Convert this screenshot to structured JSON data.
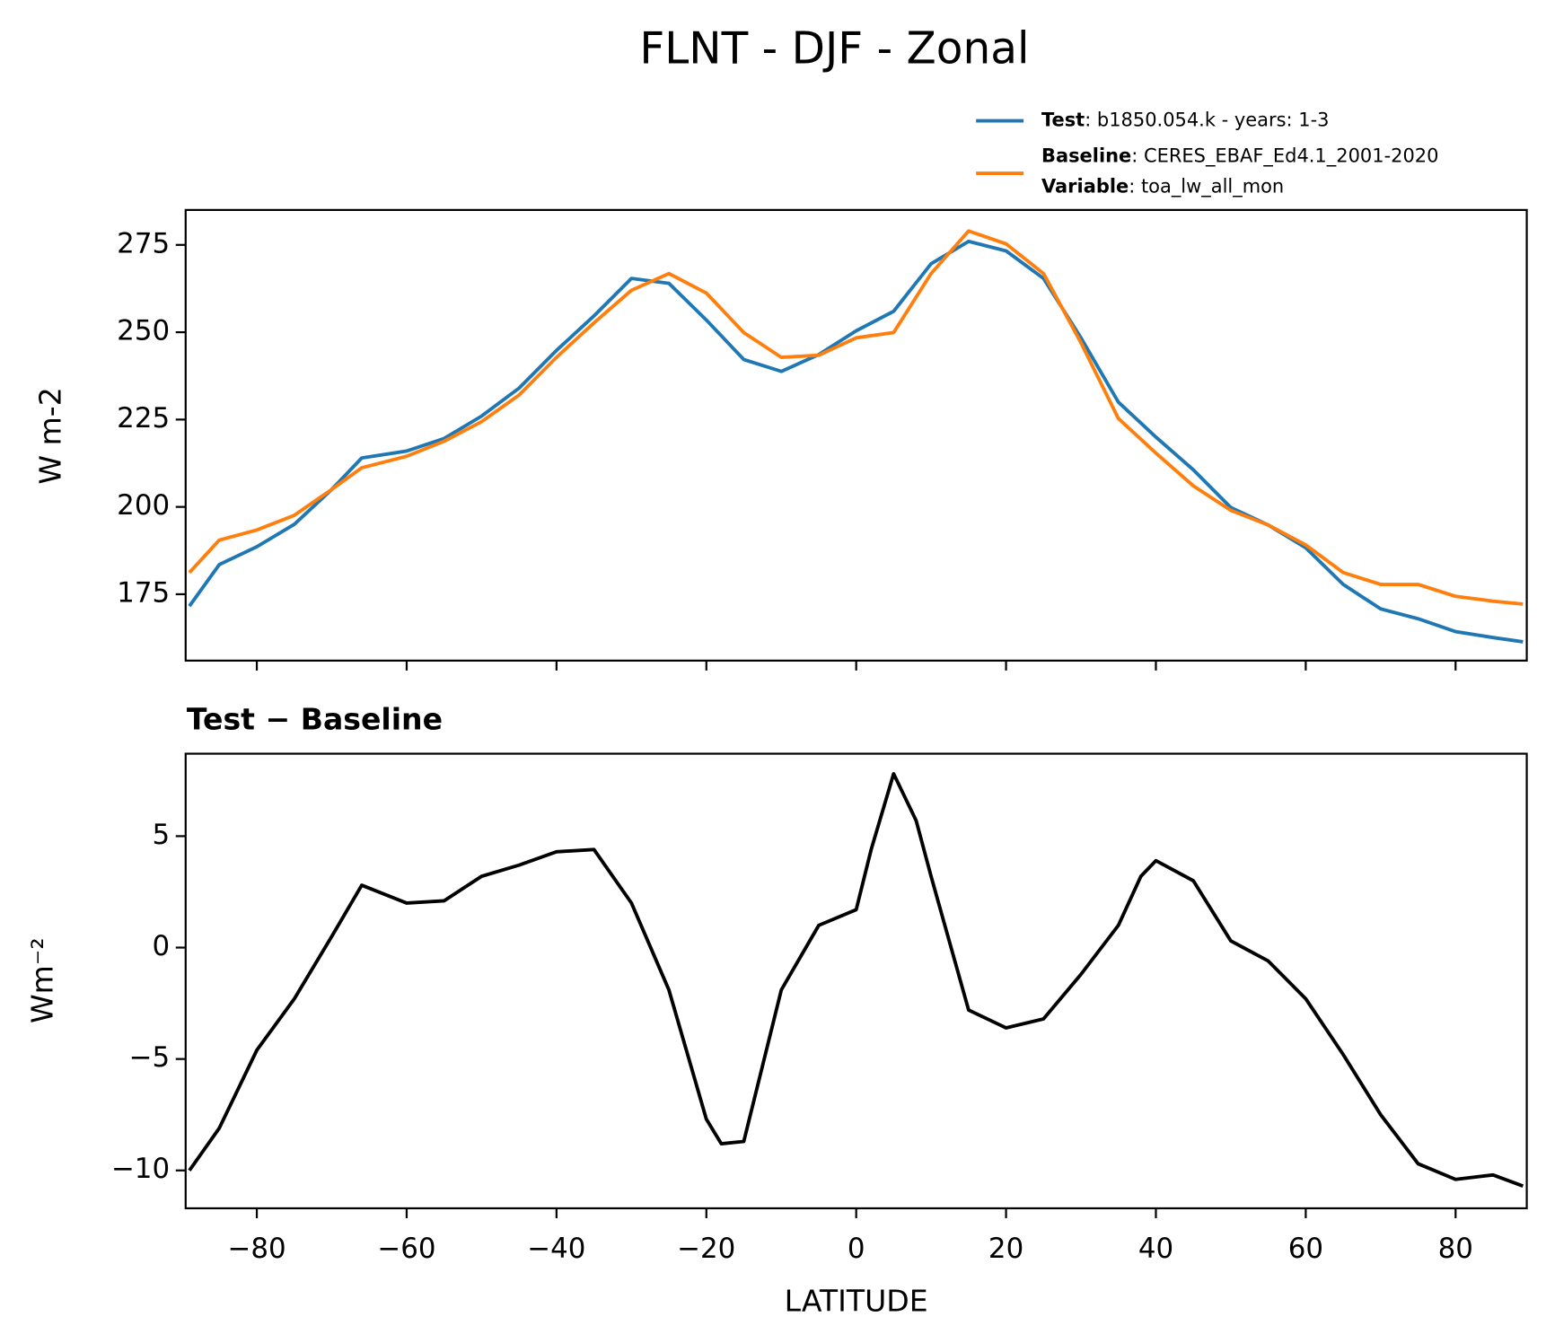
{
  "chart_data": [
    {
      "type": "line",
      "title": "FLNT - DJF - Zonal",
      "ylabel": "W m-2",
      "x": [
        -89,
        -85,
        -80,
        -75,
        -70,
        -66,
        -60,
        -55,
        -50,
        -45,
        -40,
        -35,
        -30,
        -25,
        -20,
        -15,
        -10,
        -5,
        0,
        5,
        10,
        15,
        20,
        25,
        30,
        35,
        40,
        45,
        50,
        55,
        60,
        65,
        70,
        75,
        80,
        85,
        89
      ],
      "series": [
        {
          "name": "Test",
          "label": ": b1850.054.k - years: 1-3",
          "color": "#1f77b4",
          "values": [
            171.6,
            183.5,
            188.6,
            195,
            205,
            214,
            216,
            219.6,
            226,
            234,
            244.8,
            254.7,
            265.4,
            264,
            253.5,
            242.2,
            238.8,
            243.6,
            250.4,
            256,
            269.6,
            276,
            273.3,
            265.4,
            248.4,
            230,
            220,
            210.6,
            199.8,
            194.8,
            188.3,
            177.8,
            170.8,
            168,
            164.3,
            162.6,
            161.4
          ]
        },
        {
          "name": "Baseline",
          "label": ": CERES_EBAF_Ed4.1_2001-2020",
          "color": "#ff7f0e",
          "values": [
            181.2,
            190.5,
            193.4,
            197.6,
            205,
            211.2,
            214.5,
            218.8,
            224.4,
            232,
            242.8,
            252.7,
            262,
            266.8,
            261.2,
            249.9,
            242.8,
            243.4,
            248.4,
            249.9,
            266.8,
            279,
            275.3,
            266.8,
            247,
            225.3,
            215.4,
            206,
            199,
            194.8,
            189.1,
            181.2,
            177.8,
            177.8,
            174.4,
            173,
            172.2
          ]
        }
      ],
      "legend_extra": {
        "name": "Variable",
        "label": ": toa_lw_all_mon"
      },
      "xlim": [
        -89.5,
        89.5
      ],
      "xticks": [
        -80,
        -60,
        -40,
        -20,
        0,
        20,
        40,
        60,
        80
      ],
      "xticklabels": false,
      "ylim": [
        156,
        285
      ],
      "yticks": [
        175,
        200,
        225,
        250,
        275
      ]
    },
    {
      "type": "line",
      "title": "Test − Baseline",
      "xlabel": "LATITUDE",
      "ylabel": "Wm⁻²",
      "x": [
        -89,
        -85,
        -80,
        -75,
        -70,
        -66,
        -60,
        -55,
        -50,
        -45,
        -40,
        -35,
        -30,
        -25,
        -20,
        -18,
        -15,
        -10,
        -5,
        0,
        2,
        5,
        8,
        10,
        15,
        20,
        25,
        30,
        35,
        38,
        40,
        45,
        50,
        55,
        60,
        65,
        70,
        75,
        80,
        85,
        89
      ],
      "series": [
        {
          "name": "Test − Baseline",
          "color": "#000000",
          "values": [
            -10,
            -8.1,
            -4.6,
            -2.3,
            0.5,
            2.8,
            2.0,
            2.1,
            3.2,
            3.7,
            4.3,
            4.4,
            2.0,
            -1.9,
            -7.7,
            -8.8,
            -8.7,
            -1.9,
            1.0,
            1.7,
            4.4,
            7.8,
            5.7,
            3.2,
            -2.8,
            -3.6,
            -3.2,
            -1.2,
            1.0,
            3.2,
            3.9,
            3.0,
            0.3,
            -0.6,
            -2.3,
            -4.8,
            -7.5,
            -9.7,
            -10.4,
            -10.2,
            -10.7
          ]
        }
      ],
      "xlim": [
        -89.5,
        89.5
      ],
      "xticks": [
        {
          "value": -80,
          "label": "−80"
        },
        {
          "value": -60,
          "label": "−60"
        },
        {
          "value": -40,
          "label": "−40"
        },
        {
          "value": -20,
          "label": "−20"
        },
        0,
        20,
        40,
        60,
        80
      ],
      "ylim": [
        -11.7,
        8.7
      ],
      "yticks": [
        {
          "value": -10,
          "label": "−10"
        },
        {
          "value": -5,
          "label": "−5"
        },
        0,
        5
      ]
    }
  ]
}
